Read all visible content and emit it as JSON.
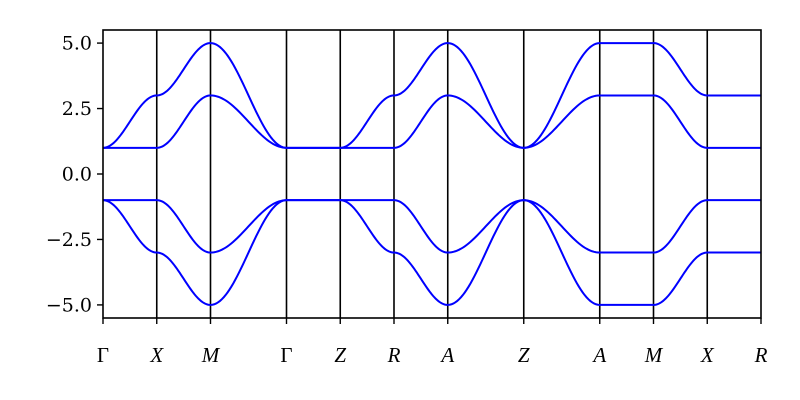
{
  "chart_data": {
    "type": "line",
    "title": "",
    "xlabel": "",
    "ylabel": "",
    "ylim": [
      -5.5,
      5.5
    ],
    "yticks": [
      5.0,
      2.5,
      0.0,
      -2.5,
      -5.0
    ],
    "ytick_labels": [
      "5.0",
      "2.5",
      "0.0",
      "−2.5",
      "−5.0"
    ],
    "kpath_labels": [
      "Γ",
      "X",
      "M",
      "Γ",
      "Z",
      "R",
      "A",
      "Z",
      "A",
      "M",
      "X",
      "R"
    ],
    "kpath_positions": [
      0,
      1,
      2,
      3.414,
      4.414,
      5.414,
      6.414,
      7.828,
      9.242,
      10.242,
      11.242,
      12.242
    ],
    "xlim": [
      0,
      12.242
    ],
    "grid": false,
    "legend": "none",
    "line_color": "#0000ff",
    "vline_color": "#000000",
    "series": [
      {
        "x": [
          0,
          1,
          2,
          3.414,
          4.414,
          5.414,
          6.414,
          7.828,
          9.242,
          10.242,
          11.242,
          12.242
        ],
        "values": [
          1,
          3,
          5,
          1,
          1,
          3,
          5,
          1,
          5,
          5,
          3,
          3
        ]
      },
      {
        "x": [
          0,
          1,
          2,
          3.414,
          4.414,
          5.414,
          6.414,
          7.828,
          9.242,
          10.242,
          11.242,
          12.242
        ],
        "values": [
          1,
          1,
          3,
          1,
          1,
          1,
          3,
          1,
          3,
          3,
          1,
          1
        ]
      },
      {
        "x": [
          0,
          1,
          2,
          3.414,
          4.414,
          5.414,
          6.414,
          7.828,
          9.242,
          10.242,
          11.242,
          12.242
        ],
        "values": [
          -1,
          -1,
          -3,
          -1,
          -1,
          -1,
          -3,
          -1,
          -3,
          -3,
          -1,
          -1
        ]
      },
      {
        "x": [
          0,
          1,
          2,
          3.414,
          4.414,
          5.414,
          6.414,
          7.828,
          9.242,
          10.242,
          11.242,
          12.242
        ],
        "values": [
          -1,
          -3,
          -5,
          -1,
          -1,
          -3,
          -5,
          -1,
          -5,
          -5,
          -3,
          -3
        ]
      }
    ]
  }
}
